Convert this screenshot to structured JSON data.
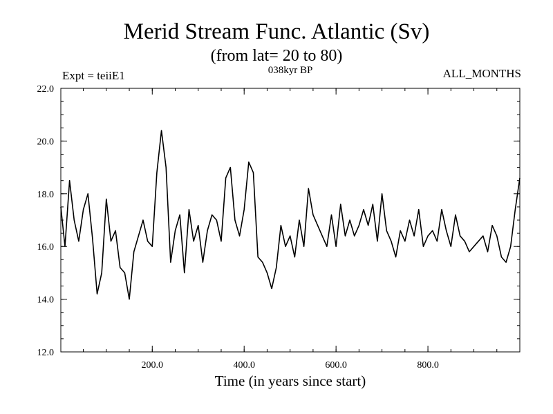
{
  "chart_data": {
    "type": "line",
    "title": "Merid Stream Func. Atlantic (Sv)",
    "subtitle": "(from lat= 20 to 80)",
    "annotations": {
      "left": "Expt = teiiE1",
      "center": "038kyr BP",
      "right": "ALL_MONTHS"
    },
    "xlabel": "Time (in years since start)",
    "ylabel": "",
    "xlim": [
      1,
      1000
    ],
    "ylim": [
      12.0,
      22.0
    ],
    "xticks": [
      200,
      400,
      600,
      800
    ],
    "xtick_labels": [
      "200.0",
      "400.0",
      "600.0",
      "800.0"
    ],
    "yticks": [
      12,
      14,
      16,
      18,
      20,
      22
    ],
    "ytick_labels": [
      "12.0",
      "14.0",
      "16.0",
      "18.0",
      "20.0",
      "22.0"
    ],
    "grid": false,
    "line_color": "#000000",
    "series": [
      {
        "x": [
          1,
          10,
          20,
          30,
          40,
          50,
          60,
          70,
          80,
          90,
          100,
          110,
          120,
          130,
          140,
          150,
          160,
          170,
          180,
          190,
          200,
          210,
          220,
          230,
          240,
          250,
          260,
          270,
          280,
          290,
          300,
          310,
          320,
          330,
          340,
          350,
          360,
          370,
          380,
          390,
          400,
          410,
          420,
          430,
          440,
          450,
          460,
          470,
          480,
          490,
          500,
          510,
          520,
          530,
          540,
          550,
          560,
          570,
          580,
          590,
          600,
          610,
          620,
          630,
          640,
          650,
          660,
          670,
          680,
          690,
          700,
          710,
          720,
          730,
          740,
          750,
          760,
          770,
          780,
          790,
          800,
          810,
          820,
          830,
          840,
          850,
          860,
          870,
          880,
          890,
          900,
          910,
          920,
          930,
          940,
          950,
          960,
          970,
          980,
          990,
          1000
        ],
        "values": [
          17.5,
          16.0,
          18.5,
          17.0,
          16.2,
          17.4,
          18.0,
          16.3,
          14.2,
          15.0,
          17.8,
          16.2,
          16.6,
          15.2,
          15.0,
          14.0,
          15.8,
          16.4,
          17.0,
          16.2,
          16.0,
          18.8,
          20.4,
          19.0,
          15.4,
          16.6,
          17.2,
          15.0,
          17.4,
          16.2,
          16.8,
          15.4,
          16.6,
          17.2,
          17.0,
          16.2,
          18.6,
          19.0,
          17.0,
          16.4,
          17.4,
          19.2,
          18.8,
          15.6,
          15.4,
          15.0,
          14.4,
          15.2,
          16.8,
          16.0,
          16.4,
          15.6,
          17.0,
          16.0,
          18.2,
          17.2,
          16.8,
          16.4,
          16.0,
          17.2,
          16.0,
          17.6,
          16.4,
          17.0,
          16.4,
          16.8,
          17.4,
          16.8,
          17.6,
          16.2,
          18.0,
          16.6,
          16.2,
          15.6,
          16.6,
          16.2,
          17.0,
          16.4,
          17.4,
          16.0,
          16.4,
          16.6,
          16.2,
          17.4,
          16.6,
          16.0,
          17.2,
          16.4,
          16.2,
          15.8,
          16.0,
          16.2,
          16.4,
          15.8,
          16.8,
          16.4,
          15.6,
          15.4,
          16.0,
          17.4,
          18.6
        ]
      }
    ]
  }
}
